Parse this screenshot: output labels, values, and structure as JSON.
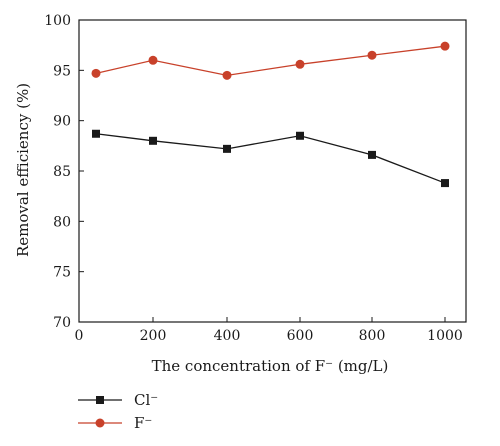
{
  "chart_data": {
    "type": "line",
    "title": "",
    "xlabel": "The concentration of F⁻ (mg/L)",
    "ylabel": "Removal efficiency (%)",
    "xlim": [
      0,
      1100
    ],
    "ylim": [
      70,
      100
    ],
    "x_ticks": [
      0,
      200,
      400,
      600,
      800,
      1000
    ],
    "y_ticks": [
      70,
      75,
      80,
      85,
      90,
      95,
      100
    ],
    "x_categories": [
      100,
      200,
      400,
      600,
      800,
      1000
    ],
    "grid": false,
    "legend_position": "bottom-left",
    "series": [
      {
        "name": "Cl⁻",
        "color": "#1a1a1a",
        "marker": "square",
        "x": [
          100,
          200,
          400,
          600,
          800,
          1000
        ],
        "y": [
          88.7,
          88.0,
          87.2,
          88.5,
          86.6,
          83.8
        ]
      },
      {
        "name": "F⁻",
        "color": "#c8412a",
        "marker": "circle",
        "x": [
          100,
          200,
          400,
          600,
          800,
          1000
        ],
        "y": [
          94.7,
          96.0,
          94.5,
          95.6,
          96.5,
          97.4
        ]
      }
    ]
  }
}
